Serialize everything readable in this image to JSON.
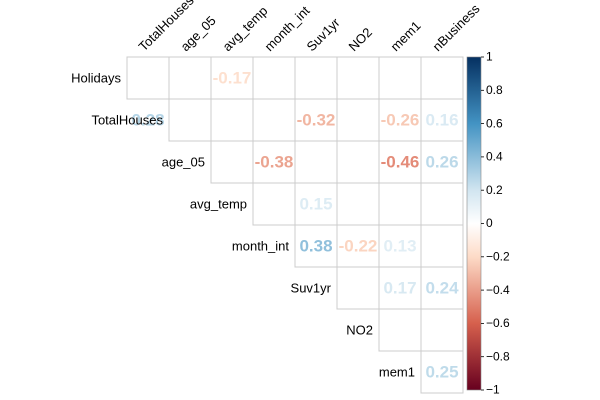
{
  "chart_data": {
    "type": "heatmap",
    "shape": "upper-triangle",
    "variables": [
      "Holidays",
      "TotalHouses",
      "age_05",
      "avg_temp",
      "month_int",
      "Suv1yr",
      "NO2",
      "mem1",
      "nBusiness"
    ],
    "row_labels": [
      "Holidays",
      "TotalHouses",
      "age_05",
      "avg_temp",
      "month_int",
      "Suv1yr",
      "NO2",
      "mem1"
    ],
    "col_labels": [
      "TotalHouses",
      "age_05",
      "avg_temp",
      "month_int",
      "Suv1yr",
      "NO2",
      "mem1",
      "nBusiness"
    ],
    "cells": [
      {
        "row": "Holidays",
        "col": "avg_temp",
        "value": -0.17,
        "label": "-0.17"
      },
      {
        "row": "TotalHouses",
        "col": "TotalHouses",
        "value": 0.28,
        "label": "0.28"
      },
      {
        "row": "TotalHouses",
        "col": "Suv1yr",
        "value": -0.32,
        "label": "-0.32"
      },
      {
        "row": "TotalHouses",
        "col": "mem1",
        "value": -0.26,
        "label": "-0.26"
      },
      {
        "row": "TotalHouses",
        "col": "nBusiness",
        "value": 0.16,
        "label": "0.16"
      },
      {
        "row": "age_05",
        "col": "month_int",
        "value": -0.38,
        "label": "-0.38"
      },
      {
        "row": "age_05",
        "col": "mem1",
        "value": -0.46,
        "label": "-0.46"
      },
      {
        "row": "age_05",
        "col": "nBusiness",
        "value": 0.26,
        "label": "0.26"
      },
      {
        "row": "avg_temp",
        "col": "Suv1yr",
        "value": 0.15,
        "label": "0.15"
      },
      {
        "row": "month_int",
        "col": "Suv1yr",
        "value": 0.38,
        "label": "0.38"
      },
      {
        "row": "month_int",
        "col": "NO2",
        "value": -0.22,
        "label": "-0.22"
      },
      {
        "row": "month_int",
        "col": "mem1",
        "value": 0.13,
        "label": "0.13"
      },
      {
        "row": "Suv1yr",
        "col": "mem1",
        "value": 0.17,
        "label": "0.17"
      },
      {
        "row": "Suv1yr",
        "col": "nBusiness",
        "value": 0.24,
        "label": "0.24"
      },
      {
        "row": "mem1",
        "col": "nBusiness",
        "value": 0.25,
        "label": "0.25"
      }
    ],
    "colorbar": {
      "range": [
        -1,
        1
      ],
      "ticks": [
        1,
        0.8,
        0.6,
        0.4,
        0.2,
        0,
        -0.2,
        -0.4,
        -0.6,
        -0.8,
        -1
      ],
      "tick_labels": [
        "1",
        "0.8",
        "0.6",
        "0.4",
        "0.2",
        "0",
        "−0.2",
        "−0.4",
        "−0.6",
        "−0.8",
        "−1"
      ]
    },
    "colors": {
      "negative_end": "#67001F",
      "negative_mid": "#D6604D",
      "negative_light": "#FDDBC7",
      "neutral": "#FFFFFF",
      "positive_light": "#D1E5F0",
      "positive_mid": "#4393C3",
      "positive_end": "#053061",
      "grid": "#CCCCCC",
      "text": "#000000"
    },
    "grid": true,
    "legend": "right"
  }
}
